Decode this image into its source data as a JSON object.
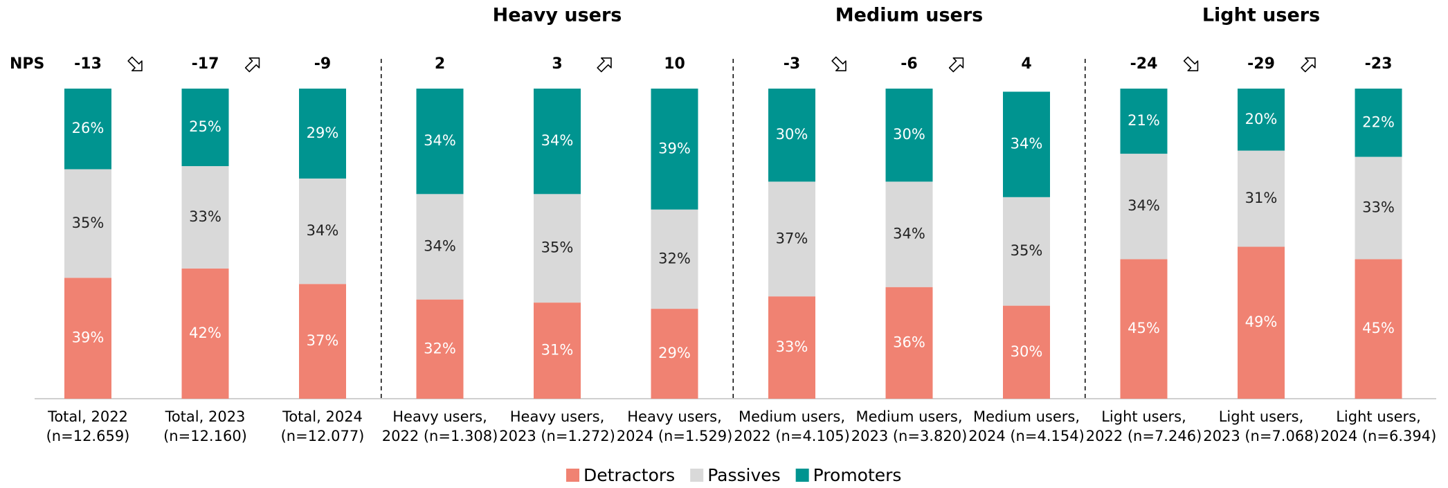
{
  "chart_data": {
    "type": "stacked_bar",
    "nps_label": "NPS",
    "nps": [
      -13,
      -17,
      -9,
      2,
      3,
      10,
      -3,
      -6,
      4,
      -24,
      -29,
      -23
    ],
    "groups": [
      {
        "title": "Heavy users",
        "index": 4
      },
      {
        "title": "Medium users",
        "index": 7
      },
      {
        "title": "Light users",
        "index": 10
      }
    ],
    "categories": [
      [
        "Total, 2022",
        "(n=12.659)"
      ],
      [
        "Total, 2023",
        "(n=12.160)"
      ],
      [
        "Total, 2024",
        "(n=12.077)"
      ],
      [
        "Heavy users,",
        "2022 (n=1.308)"
      ],
      [
        "Heavy users,",
        "2023 (n=1.272)"
      ],
      [
        "Heavy users,",
        "2024 (n=1.529)"
      ],
      [
        "Medium users,",
        "2022 (n=4.105)"
      ],
      [
        "Medium users,",
        "2023 (n=3.820)"
      ],
      [
        "Medium users,",
        "2024 (n=4.154)"
      ],
      [
        "Light users,",
        "2022 (n=7.246)"
      ],
      [
        "Light users,",
        "2023 (n=7.068)"
      ],
      [
        "Light users,",
        "2024 (n=6.394)"
      ]
    ],
    "series": [
      {
        "name": "Detractors",
        "color": "#f08272",
        "values": [
          39,
          42,
          37,
          32,
          31,
          29,
          33,
          36,
          30,
          45,
          49,
          45
        ],
        "value_labels": [
          "39%",
          "42%",
          "37%",
          "32%",
          "31%",
          "29%",
          "33%",
          "36%",
          "30%",
          "45%",
          "49%",
          "45%"
        ]
      },
      {
        "name": "Passives",
        "color": "#d9d9d9",
        "values": [
          35,
          33,
          34,
          34,
          35,
          32,
          37,
          34,
          35,
          34,
          31,
          33
        ],
        "value_labels": [
          "35%",
          "33%",
          "34%",
          "34%",
          "35%",
          "32%",
          "37%",
          "34%",
          "35%",
          "34%",
          "31%",
          "33%"
        ]
      },
      {
        "name": "Promoters",
        "color": "#009490",
        "values": [
          26,
          25,
          29,
          34,
          34,
          39,
          30,
          30,
          34,
          21,
          20,
          22
        ],
        "value_labels": [
          "26%",
          "25%",
          "29%",
          "34%",
          "34%",
          "39%",
          "30%",
          "30%",
          "34%",
          "21%",
          "20%",
          "22%"
        ]
      }
    ],
    "ylim": [
      0,
      100
    ]
  }
}
